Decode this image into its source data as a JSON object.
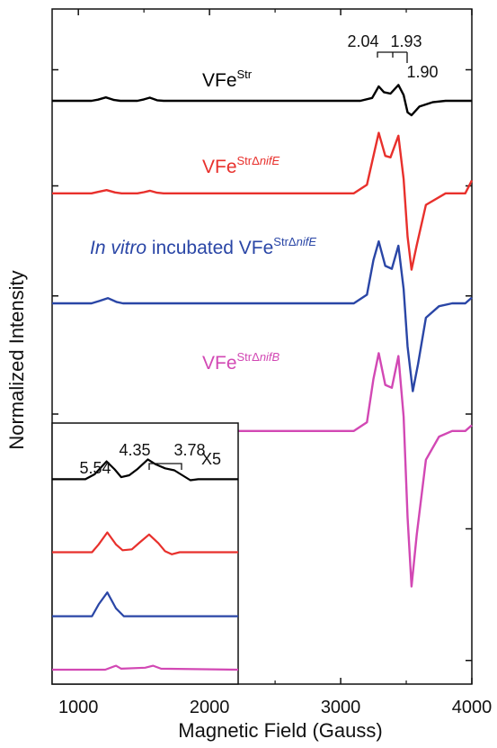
{
  "chart_data": {
    "type": "line",
    "xlabel": "Magnetic Field (Gauss)",
    "ylabel": "Normalized Intensity",
    "xlim": [
      800,
      4000
    ],
    "x_ticks": [
      1000,
      2000,
      3000,
      4000
    ],
    "grid": false,
    "series": [
      {
        "name": "VFe",
        "sup": "Str",
        "sup_italic": "",
        "color": "#000000",
        "baseline_frac": 0.136,
        "points": [
          [
            800,
            0
          ],
          [
            1100,
            0
          ],
          [
            1150,
            0.04
          ],
          [
            1210,
            0.12
          ],
          [
            1270,
            0.03
          ],
          [
            1320,
            0
          ],
          [
            1450,
            0
          ],
          [
            1500,
            0.05
          ],
          [
            1545,
            0.11
          ],
          [
            1600,
            0.02
          ],
          [
            1650,
            0
          ],
          [
            3150,
            0
          ],
          [
            3240,
            0.1
          ],
          [
            3290,
            0.5
          ],
          [
            3330,
            0.3
          ],
          [
            3380,
            0.25
          ],
          [
            3440,
            0.55
          ],
          [
            3480,
            0.2
          ],
          [
            3510,
            -0.4
          ],
          [
            3540,
            -0.5
          ],
          [
            3600,
            -0.2
          ],
          [
            3700,
            -0.05
          ],
          [
            3800,
            0
          ],
          [
            4000,
            0
          ]
        ]
      },
      {
        "name": "VFe",
        "sup": "StrΔ",
        "sup_italic": "nifE",
        "color": "#e8302c",
        "baseline_frac": 0.273,
        "points": [
          [
            800,
            0
          ],
          [
            1100,
            0
          ],
          [
            1150,
            0.05
          ],
          [
            1215,
            0.11
          ],
          [
            1280,
            0.03
          ],
          [
            1330,
            0
          ],
          [
            1450,
            0
          ],
          [
            1500,
            0.04
          ],
          [
            1545,
            0.09
          ],
          [
            1600,
            0.02
          ],
          [
            1650,
            0
          ],
          [
            3100,
            0
          ],
          [
            3200,
            0.3
          ],
          [
            3260,
            1.5
          ],
          [
            3290,
            2.1
          ],
          [
            3340,
            1.3
          ],
          [
            3380,
            1.25
          ],
          [
            3440,
            2.0
          ],
          [
            3480,
            0.5
          ],
          [
            3510,
            -1.5
          ],
          [
            3540,
            -2.65
          ],
          [
            3580,
            -1.8
          ],
          [
            3650,
            -0.4
          ],
          [
            3800,
            0
          ],
          [
            3950,
            0
          ],
          [
            4000,
            0.45
          ]
        ]
      },
      {
        "name": "",
        "prefix_italic": "In vitro",
        "prefix": " incubated VFe",
        "sup": "StrΔ",
        "sup_italic": "nifE",
        "color": "#2a46a6",
        "baseline_frac": 0.436,
        "points": [
          [
            800,
            0
          ],
          [
            1100,
            0
          ],
          [
            1160,
            0.08
          ],
          [
            1225,
            0.18
          ],
          [
            1290,
            0.05
          ],
          [
            1340,
            0
          ],
          [
            3100,
            0
          ],
          [
            3200,
            0.3
          ],
          [
            3250,
            1.5
          ],
          [
            3290,
            2.15
          ],
          [
            3340,
            1.3
          ],
          [
            3390,
            1.2
          ],
          [
            3440,
            2.0
          ],
          [
            3480,
            0.5
          ],
          [
            3510,
            -1.5
          ],
          [
            3550,
            -3.05
          ],
          [
            3590,
            -2.1
          ],
          [
            3650,
            -0.5
          ],
          [
            3750,
            -0.1
          ],
          [
            3850,
            0
          ],
          [
            3950,
            0
          ],
          [
            4000,
            0.2
          ]
        ]
      },
      {
        "name": "VFe",
        "sup": "StrΔ",
        "sup_italic": "nifB",
        "color": "#d248b4",
        "baseline_frac": 0.625,
        "points": [
          [
            800,
            0
          ],
          [
            3100,
            0
          ],
          [
            3200,
            0.3
          ],
          [
            3250,
            1.8
          ],
          [
            3290,
            2.7
          ],
          [
            3340,
            1.6
          ],
          [
            3390,
            1.5
          ],
          [
            3440,
            2.6
          ],
          [
            3480,
            0.5
          ],
          [
            3510,
            -3.0
          ],
          [
            3540,
            -5.4
          ],
          [
            3580,
            -3.6
          ],
          [
            3650,
            -1.0
          ],
          [
            3750,
            -0.2
          ],
          [
            3850,
            0
          ],
          [
            3950,
            0
          ],
          [
            4000,
            0.2
          ]
        ]
      }
    ],
    "g_annotations": {
      "top": [
        "2.04",
        "1.93"
      ],
      "right": "1.90"
    },
    "inset": {
      "scale_label": "X5",
      "g_labels": [
        "5.54",
        "4.35",
        "3.78"
      ],
      "xlim": [
        800,
        2200
      ],
      "series": [
        {
          "color": "#000000",
          "baseline_frac": 0.215,
          "points": [
            [
              800,
              0
            ],
            [
              1050,
              0
            ],
            [
              1120,
              0.25
            ],
            [
              1210,
              0.9
            ],
            [
              1270,
              0.5
            ],
            [
              1320,
              0.1
            ],
            [
              1380,
              0.2
            ],
            [
              1440,
              0.5
            ],
            [
              1520,
              1.0
            ],
            [
              1580,
              0.75
            ],
            [
              1650,
              0.55
            ],
            [
              1720,
              0.45
            ],
            [
              1780,
              0.2
            ],
            [
              1840,
              -0.05
            ],
            [
              1900,
              0
            ],
            [
              2200,
              0
            ]
          ]
        },
        {
          "color": "#e8302c",
          "baseline_frac": 0.495,
          "points": [
            [
              800,
              0
            ],
            [
              1100,
              0
            ],
            [
              1150,
              0.4
            ],
            [
              1215,
              1.0
            ],
            [
              1280,
              0.4
            ],
            [
              1330,
              0.1
            ],
            [
              1400,
              0.15
            ],
            [
              1460,
              0.5
            ],
            [
              1530,
              0.9
            ],
            [
              1600,
              0.45
            ],
            [
              1650,
              0.05
            ],
            [
              1700,
              -0.1
            ],
            [
              1760,
              0
            ],
            [
              2200,
              0
            ]
          ]
        },
        {
          "color": "#2a46a6",
          "baseline_frac": 0.74,
          "points": [
            [
              800,
              0
            ],
            [
              1100,
              0
            ],
            [
              1150,
              0.6
            ],
            [
              1215,
              1.2
            ],
            [
              1280,
              0.4
            ],
            [
              1340,
              0
            ],
            [
              2200,
              0
            ]
          ]
        },
        {
          "color": "#d248b4",
          "baseline_frac": 0.945,
          "points": [
            [
              800,
              0
            ],
            [
              1200,
              0
            ],
            [
              1280,
              0.2
            ],
            [
              1320,
              0.05
            ],
            [
              1500,
              0.1
            ],
            [
              1560,
              0.2
            ],
            [
              1620,
              0.05
            ],
            [
              2200,
              0
            ]
          ]
        }
      ]
    }
  }
}
